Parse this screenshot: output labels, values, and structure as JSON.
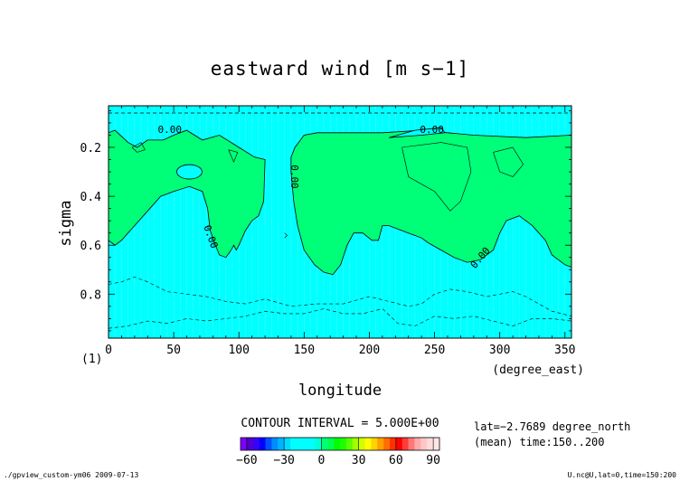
{
  "chart_data": {
    "type": "contour",
    "title": "eastward wind [m s−1]",
    "xlabel": "longitude",
    "ylabel": "sigma",
    "x_units": "(degree_east)",
    "panel_label": "(1)",
    "xlim": [
      0,
      355
    ],
    "ylim": [
      0.98,
      0.03
    ],
    "x_ticks": [
      0,
      50,
      100,
      150,
      200,
      250,
      300,
      350
    ],
    "y_ticks": [
      0.2,
      0.4,
      0.6,
      0.8
    ],
    "contour_interval_text": "CONTOUR INTERVAL = 5.000E+00",
    "contour_labels": [
      {
        "text": "0.00",
        "x": 47,
        "y": 0.14
      },
      {
        "text": "0.00",
        "x": 248,
        "y": 0.14
      },
      {
        "text": "0.00",
        "x": 140,
        "y": 0.32
      },
      {
        "text": "0.00",
        "x": 76,
        "y": 0.57
      },
      {
        "text": "0.00",
        "x": 287,
        "y": 0.66
      }
    ],
    "positive_regions": [
      [
        [
          0,
          0.14
        ],
        [
          5,
          0.13
        ],
        [
          15,
          0.18
        ],
        [
          22,
          0.2
        ],
        [
          30,
          0.17
        ],
        [
          42,
          0.17
        ],
        [
          50,
          0.15
        ],
        [
          60,
          0.13
        ],
        [
          72,
          0.17
        ],
        [
          85,
          0.15
        ],
        [
          100,
          0.2
        ],
        [
          112,
          0.24
        ],
        [
          120,
          0.25
        ],
        [
          119,
          0.42
        ],
        [
          115,
          0.48
        ],
        [
          110,
          0.5
        ],
        [
          105,
          0.54
        ],
        [
          100,
          0.6
        ],
        [
          98,
          0.62
        ],
        [
          96,
          0.6
        ],
        [
          94,
          0.62
        ],
        [
          90,
          0.65
        ],
        [
          85,
          0.64
        ],
        [
          82,
          0.6
        ],
        [
          78,
          0.54
        ],
        [
          76,
          0.45
        ],
        [
          72,
          0.38
        ],
        [
          62,
          0.36
        ],
        [
          50,
          0.38
        ],
        [
          40,
          0.4
        ],
        [
          30,
          0.46
        ],
        [
          20,
          0.52
        ],
        [
          10,
          0.58
        ],
        [
          5,
          0.6
        ],
        [
          0,
          0.58
        ]
      ],
      [
        [
          140,
          0.24
        ],
        [
          143,
          0.2
        ],
        [
          150,
          0.15
        ],
        [
          160,
          0.14
        ],
        [
          170,
          0.14
        ],
        [
          190,
          0.14
        ],
        [
          210,
          0.14
        ],
        [
          240,
          0.13
        ],
        [
          260,
          0.14
        ],
        [
          280,
          0.15
        ],
        [
          320,
          0.16
        ],
        [
          355,
          0.15
        ],
        [
          355,
          0.69
        ],
        [
          350,
          0.68
        ],
        [
          340,
          0.64
        ],
        [
          335,
          0.58
        ],
        [
          325,
          0.52
        ],
        [
          315,
          0.48
        ],
        [
          305,
          0.5
        ],
        [
          300,
          0.55
        ],
        [
          295,
          0.62
        ],
        [
          285,
          0.66
        ],
        [
          275,
          0.67
        ],
        [
          265,
          0.65
        ],
        [
          255,
          0.62
        ],
        [
          245,
          0.59
        ],
        [
          240,
          0.57
        ],
        [
          230,
          0.55
        ],
        [
          215,
          0.52
        ],
        [
          210,
          0.52
        ],
        [
          207,
          0.58
        ],
        [
          202,
          0.58
        ],
        [
          195,
          0.55
        ],
        [
          188,
          0.55
        ],
        [
          183,
          0.6
        ],
        [
          178,
          0.68
        ],
        [
          172,
          0.72
        ],
        [
          165,
          0.71
        ],
        [
          158,
          0.68
        ],
        [
          150,
          0.62
        ],
        [
          145,
          0.52
        ],
        [
          142,
          0.42
        ],
        [
          140,
          0.3
        ]
      ]
    ],
    "negative_contours": [
      [
        [
          0,
          0.76
        ],
        [
          10,
          0.75
        ],
        [
          20,
          0.73
        ],
        [
          30,
          0.75
        ],
        [
          45,
          0.79
        ],
        [
          60,
          0.8
        ],
        [
          75,
          0.81
        ],
        [
          90,
          0.83
        ],
        [
          105,
          0.84
        ],
        [
          120,
          0.82
        ],
        [
          140,
          0.85
        ],
        [
          160,
          0.84
        ],
        [
          180,
          0.84
        ],
        [
          200,
          0.81
        ],
        [
          215,
          0.83
        ],
        [
          230,
          0.85
        ],
        [
          240,
          0.84
        ],
        [
          250,
          0.8
        ],
        [
          262,
          0.78
        ],
        [
          275,
          0.79
        ],
        [
          290,
          0.81
        ],
        [
          300,
          0.8
        ],
        [
          310,
          0.79
        ],
        [
          320,
          0.81
        ],
        [
          330,
          0.84
        ],
        [
          340,
          0.87
        ],
        [
          355,
          0.89
        ]
      ],
      [
        [
          0,
          0.94
        ],
        [
          15,
          0.93
        ],
        [
          30,
          0.91
        ],
        [
          45,
          0.92
        ],
        [
          60,
          0.9
        ],
        [
          75,
          0.91
        ],
        [
          90,
          0.9
        ],
        [
          105,
          0.89
        ],
        [
          120,
          0.87
        ],
        [
          135,
          0.88
        ],
        [
          150,
          0.88
        ],
        [
          165,
          0.86
        ],
        [
          180,
          0.88
        ],
        [
          195,
          0.88
        ],
        [
          210,
          0.86
        ],
        [
          222,
          0.92
        ],
        [
          235,
          0.93
        ],
        [
          250,
          0.89
        ],
        [
          265,
          0.9
        ],
        [
          280,
          0.89
        ],
        [
          295,
          0.91
        ],
        [
          310,
          0.93
        ],
        [
          325,
          0.9
        ],
        [
          340,
          0.9
        ],
        [
          355,
          0.91
        ]
      ]
    ],
    "colorbar": {
      "ticks": [
        -60,
        -30,
        0,
        30,
        60,
        90
      ],
      "min": -65,
      "max": 95,
      "step": 5,
      "colors": [
        "#7f00ff",
        "#5000c8",
        "#3a00ff",
        "#0000ff",
        "#0050ff",
        "#008cff",
        "#00b4ff",
        "#00dcff",
        "#00ffff",
        "#00ffff",
        "#00ffff",
        "#00ffff",
        "#00ffd2",
        "#00ff78",
        "#00ff50",
        "#00ff00",
        "#1eff00",
        "#5aff00",
        "#a0ff00",
        "#d2ff00",
        "#ffff00",
        "#ffd200",
        "#ffa000",
        "#ff6e00",
        "#ff3200",
        "#ff0000",
        "#ff3c3c",
        "#ff7878",
        "#ffaaaa",
        "#ffc8c8",
        "#ffdcdc",
        "#ffe6e6"
      ]
    },
    "info_line1": "lat=−2.7689 degree_north",
    "info_line2": "(mean) time:150..200",
    "background_color": "#00ffff",
    "positive_color": "#00ff78"
  },
  "footer_left": "./gpview_custom-ym06  2009-07-13",
  "footer_right": "U.nc@U,lat=0,time=150:200"
}
